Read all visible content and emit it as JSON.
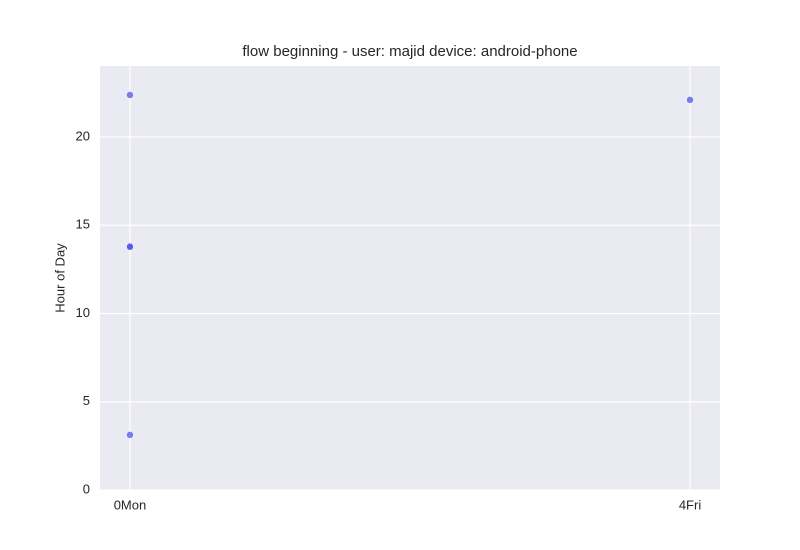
{
  "chart_data": {
    "type": "scatter",
    "title": "flow beginning - user: majid device: android-phone",
    "y_label": "Hour of Day",
    "x": [
      0,
      0,
      0,
      0,
      4
    ],
    "y": [
      22.38,
      13.82,
      13.77,
      3.12,
      22.1
    ],
    "color": "#4a4ae6",
    "xlim": [
      -0.214,
      4.214
    ],
    "ylim": [
      0,
      24.02
    ],
    "xticks": [
      {
        "value": 0,
        "label": "0Mon"
      },
      {
        "value": 4,
        "label": "4Fri"
      }
    ],
    "yticks": [
      0,
      5,
      10,
      15,
      20
    ],
    "grid": true
  }
}
